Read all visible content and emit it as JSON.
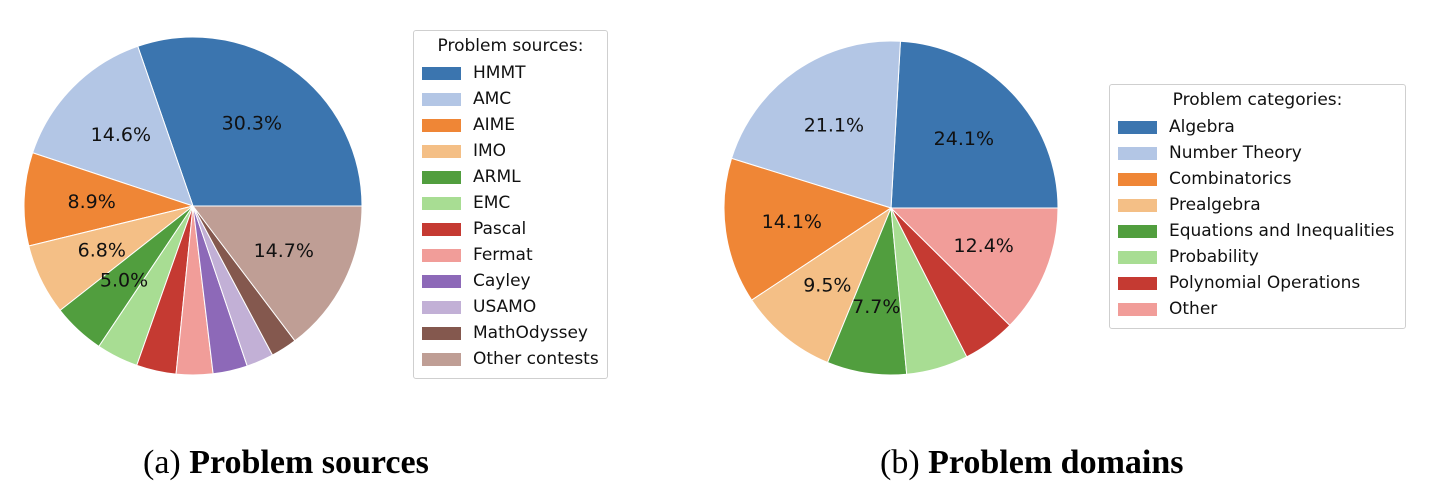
{
  "chart_data": [
    {
      "type": "pie",
      "legend_title": "Problem sources:",
      "legend_position": "right",
      "start_angle_deg": 0,
      "direction": "counterclockwise",
      "categories": [
        "HMMT",
        "AMC",
        "AIME",
        "IMO",
        "ARML",
        "EMC",
        "Pascal",
        "Fermat",
        "Cayley",
        "USAMO",
        "MathOdyssey",
        "Other contests"
      ],
      "values": [
        30.3,
        14.6,
        8.9,
        6.8,
        5.0,
        4.0,
        3.8,
        3.5,
        3.3,
        2.6,
        2.5,
        14.7
      ],
      "labels": [
        "30.3%",
        "14.6%",
        "8.9%",
        "6.8%",
        "5.0%",
        "",
        "",
        "",
        "",
        "",
        "",
        "14.7%"
      ],
      "colors": [
        "#3b75af",
        "#b3c6e5",
        "#ef8636",
        "#f4bf86",
        "#519e3e",
        "#a8dd93",
        "#c53a32",
        "#f19d99",
        "#8d69b8",
        "#c2b0d6",
        "#84584e",
        "#bf9e95"
      ],
      "caption_prefix": "(a) ",
      "caption_bold": "Problem sources"
    },
    {
      "type": "pie",
      "legend_title": "Problem categories:",
      "legend_position": "right",
      "start_angle_deg": 0,
      "direction": "counterclockwise",
      "categories": [
        "Algebra",
        "Number Theory",
        "Combinatorics",
        "Prealgebra",
        "Equations and Inequalities",
        "Probability",
        "Polynomial Operations",
        "Other"
      ],
      "values": [
        24.1,
        21.1,
        14.1,
        9.5,
        7.7,
        6.0,
        5.1,
        12.4
      ],
      "labels": [
        "24.1%",
        "21.1%",
        "14.1%",
        "9.5%",
        "7.7%",
        "",
        "",
        "12.4%"
      ],
      "colors": [
        "#3b75af",
        "#b3c6e5",
        "#ef8636",
        "#f4bf86",
        "#519e3e",
        "#a8dd93",
        "#c53a32",
        "#f19d99"
      ],
      "caption_prefix": "(b) ",
      "caption_bold": "Problem domains"
    }
  ]
}
